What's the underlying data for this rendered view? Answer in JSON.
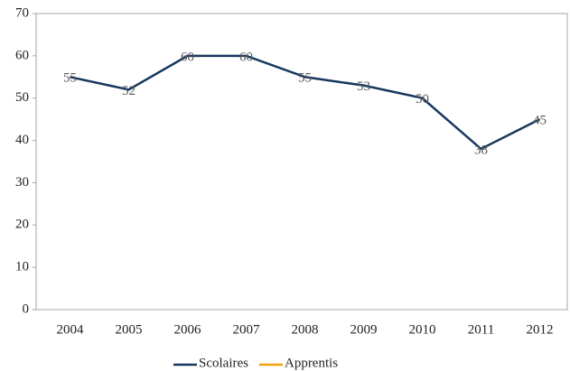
{
  "chart_data": {
    "type": "line",
    "categories": [
      "2004",
      "2005",
      "2006",
      "2007",
      "2008",
      "2009",
      "2010",
      "2011",
      "2012"
    ],
    "series": [
      {
        "name": "Scolaires",
        "color": "#17375e",
        "values": [
          55,
          52,
          60,
          60,
          55,
          53,
          50,
          38,
          45
        ]
      },
      {
        "name": "Apprentis",
        "color": "#f0a30a",
        "values": [
          null,
          null,
          null,
          null,
          null,
          null,
          null,
          null,
          null
        ]
      }
    ],
    "ylim": [
      0,
      70
    ],
    "yticks": [
      0,
      10,
      20,
      30,
      40,
      50,
      60,
      70
    ],
    "grid": false,
    "legend": "bottom",
    "data_labels": true
  }
}
